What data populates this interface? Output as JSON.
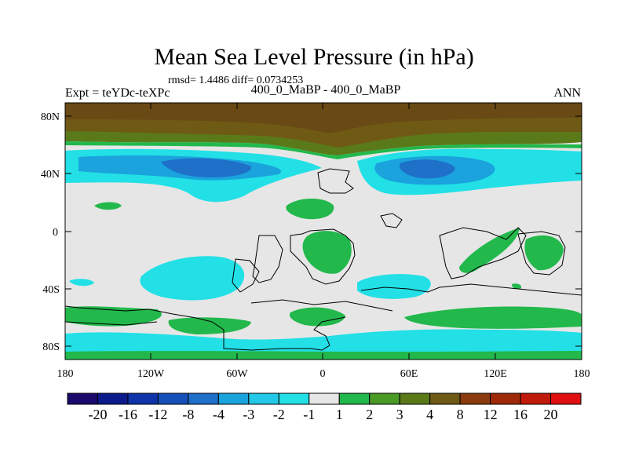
{
  "title": "Mean Sea Level Pressure (in hPa)",
  "stats": "rmsd= 1.4486 diff= 0.0734253",
  "left_label": "Expt = teYDc-teXPc",
  "center_label": "400_0_MaBP - 400_0_MaBP",
  "right_label": "ANN",
  "y_ticks": [
    "80N",
    "40N",
    "0",
    "40S",
    "80S"
  ],
  "x_ticks": [
    "180",
    "120W",
    "60W",
    "0",
    "60E",
    "120E",
    "180"
  ],
  "colorbar": {
    "labels": [
      "-20",
      "-16",
      "-12",
      "-8",
      "-4",
      "-3",
      "-2",
      "-1",
      "1",
      "2",
      "3",
      "4",
      "8",
      "12",
      "16",
      "20"
    ],
    "colors": [
      "#1b0a6b",
      "#0d1a8c",
      "#0f33a8",
      "#1450b8",
      "#1e70c8",
      "#1aa3dc",
      "#22c8e6",
      "#22e0e6",
      "#e6e6e6",
      "#22b84c",
      "#4a9a26",
      "#5a7a1a",
      "#6e5a14",
      "#8a3c0e",
      "#9e2a0a",
      "#c01a0a",
      "#e01010"
    ]
  },
  "colors": {
    "background": "#e6e6e6",
    "brown_dark": "#6e5a14",
    "brown_mid": "#8a5a1e",
    "olive": "#5a7a1a",
    "green": "#22b84c",
    "cyan": "#22e0e6",
    "lightblue": "#1aa3dc",
    "blue": "#1e70c8"
  }
}
